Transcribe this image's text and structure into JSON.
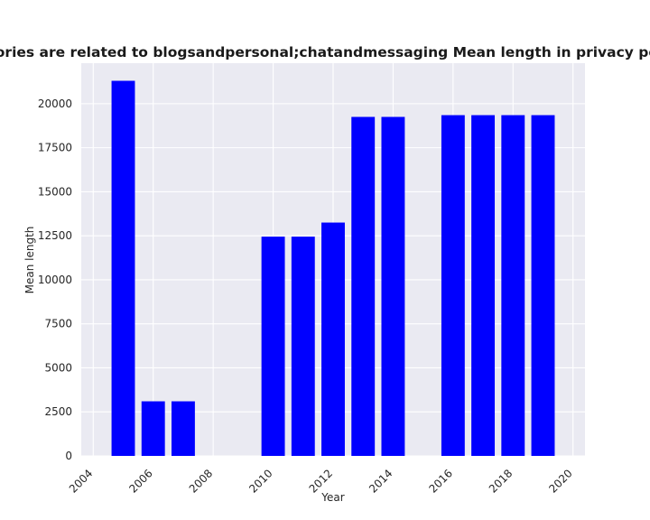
{
  "chart_data": {
    "type": "bar",
    "title": "categories are related to blogsandpersonal;chatandmessaging Mean length in privacy policies",
    "xlabel": "Year",
    "ylabel": "Mean length",
    "x": [
      2005,
      2006,
      2007,
      2010,
      2011,
      2012,
      2013,
      2014,
      2016,
      2017,
      2018,
      2019
    ],
    "values": [
      21300,
      3100,
      3100,
      12450,
      12450,
      13250,
      19250,
      19250,
      19350,
      19350,
      19350,
      19350
    ],
    "bar_color": "#0000ff",
    "xlim": [
      2003.6,
      2020.4
    ],
    "ylim": [
      0,
      22300
    ],
    "xticks": [
      2004,
      2006,
      2008,
      2010,
      2012,
      2014,
      2016,
      2018,
      2020
    ],
    "yticks": [
      0,
      2500,
      5000,
      7500,
      10000,
      12500,
      15000,
      17500,
      20000
    ],
    "grid": true,
    "background": "#eaeaf2"
  }
}
